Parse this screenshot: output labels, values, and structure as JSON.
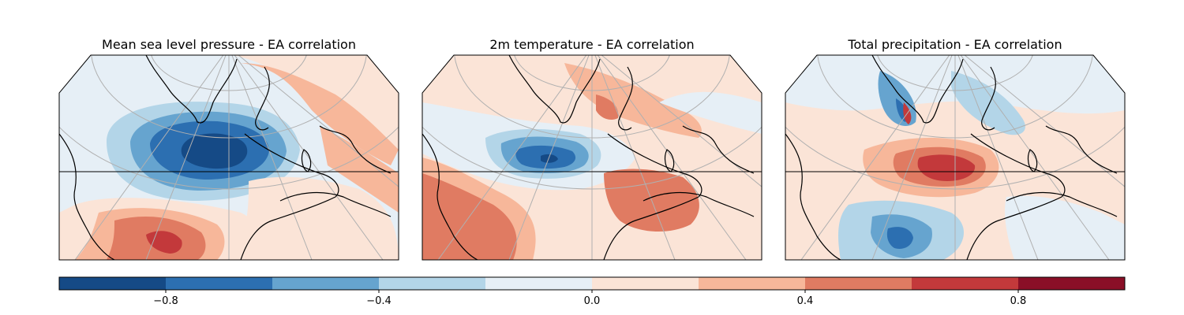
{
  "panels": [
    {
      "id": "mslp",
      "title": "Mean sea level pressure - EA correlation"
    },
    {
      "id": "t2m",
      "title": "2m temperature - EA correlation"
    },
    {
      "id": "tp",
      "title": "Total precipitation - EA correlation"
    }
  ],
  "colorbar": {
    "vmin": -1.0,
    "vmax": 1.0,
    "levels": [
      -1.0,
      -0.8,
      -0.6,
      -0.4,
      -0.2,
      0.0,
      0.2,
      0.4,
      0.6,
      0.8,
      1.0
    ],
    "colors": [
      "#154a86",
      "#2c6fb1",
      "#66a4cf",
      "#b3d5e8",
      "#e6eff6",
      "#fbe4d7",
      "#f7b79a",
      "#e07b62",
      "#c3393b",
      "#8a0f27"
    ],
    "tick_values": [
      -0.8,
      -0.4,
      0.0,
      0.4,
      0.8
    ],
    "tick_labels": [
      "−0.8",
      "−0.4",
      "0.0",
      "0.4",
      "0.8"
    ]
  },
  "colors": {
    "coastline": "#000000",
    "gridline": "#b0b0b0",
    "frame": "#000000"
  }
}
